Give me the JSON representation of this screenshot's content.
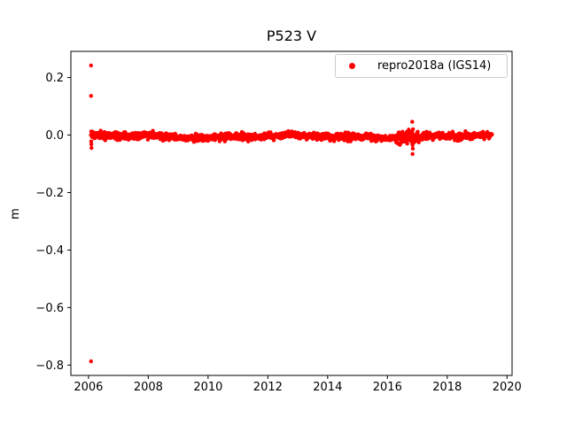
{
  "figure": {
    "background": "#ffffff",
    "text_color": "#000000",
    "spine_color": "#000000"
  },
  "chart_data": {
    "type": "scatter",
    "title": "P523 V",
    "xlabel": "",
    "ylabel": "m",
    "grid": false,
    "xlim": [
      2005.41,
      2020.17
    ],
    "ylim": [
      -0.836,
      0.291
    ],
    "xticks": [
      2006,
      2008,
      2010,
      2012,
      2014,
      2016,
      2018,
      2020
    ],
    "xticklabels": [
      "2006",
      "2008",
      "2010",
      "2012",
      "2014",
      "2016",
      "2018",
      "2020"
    ],
    "yticks": [
      0.2,
      0.0,
      -0.2,
      -0.4,
      -0.6,
      -0.8
    ],
    "yticklabels": [
      "0.2",
      "0.0",
      "−0.2",
      "−0.4",
      "−0.6",
      "−0.8"
    ],
    "legend": [
      {
        "label": "repro2018a (IGS14)",
        "color": "#ff0000",
        "marker": "dot",
        "position": "upper right"
      }
    ],
    "series": [
      {
        "name": "repro2018a (IGS14)",
        "color": "#ff0000",
        "marker": "dot",
        "marker_radius_px": 2.2,
        "dense_band": {
          "t_start": 2006.08,
          "t_end": 2019.5,
          "n_points": 1600,
          "mean": -0.005,
          "std": 0.006,
          "clamp_sigma": 2.8,
          "meander": [
            {
              "amp": 0.004,
              "period": 6.0,
              "phase": 0.8
            },
            {
              "amp": 0.0025,
              "period": 2.3,
              "phase": 2.1
            }
          ],
          "seed": 20180523,
          "bursts": [
            {
              "t_start": 2016.35,
              "t_end": 2017.05,
              "std_mult": 2.0
            }
          ]
        },
        "outliers": [
          [
            2006.085,
            0.242
          ],
          [
            2006.085,
            0.136
          ],
          [
            2006.085,
            -0.787
          ],
          [
            2006.09,
            0.012
          ],
          [
            2006.09,
            -0.022
          ],
          [
            2006.095,
            -0.032
          ],
          [
            2006.1,
            -0.045
          ],
          [
            2016.83,
            0.046
          ],
          [
            2016.84,
            -0.035
          ],
          [
            2016.85,
            -0.047
          ],
          [
            2016.84,
            -0.066
          ]
        ]
      }
    ]
  }
}
